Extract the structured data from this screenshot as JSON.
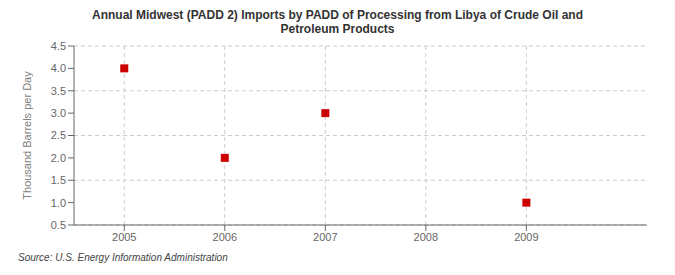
{
  "chart_data": {
    "type": "scatter",
    "title": "Annual Midwest (PADD 2) Imports by PADD of Processing from Libya of Crude Oil and\nPetroleum Products",
    "ylabel": "Thousand Barrels per Day",
    "source": "Source: U.S. Energy Information Administration",
    "x": [
      2005,
      2006,
      2007,
      2009
    ],
    "values": [
      4.0,
      2.0,
      3.0,
      1.0
    ],
    "color": "#cc0000",
    "marker": "square",
    "xlim": [
      2004.5,
      2010.2
    ],
    "ylim": [
      0.5,
      4.5
    ],
    "xticks": [
      2005,
      2006,
      2007,
      2008,
      2009
    ],
    "yticks": [
      0.5,
      {
        "value": 1,
        "label": "1.0"
      },
      1.5,
      {
        "value": 2,
        "label": "2.0"
      },
      2.5,
      {
        "value": 3,
        "label": "3.0"
      },
      3.5,
      {
        "value": 4,
        "label": "4.0"
      },
      4.5
    ],
    "grid": true
  }
}
